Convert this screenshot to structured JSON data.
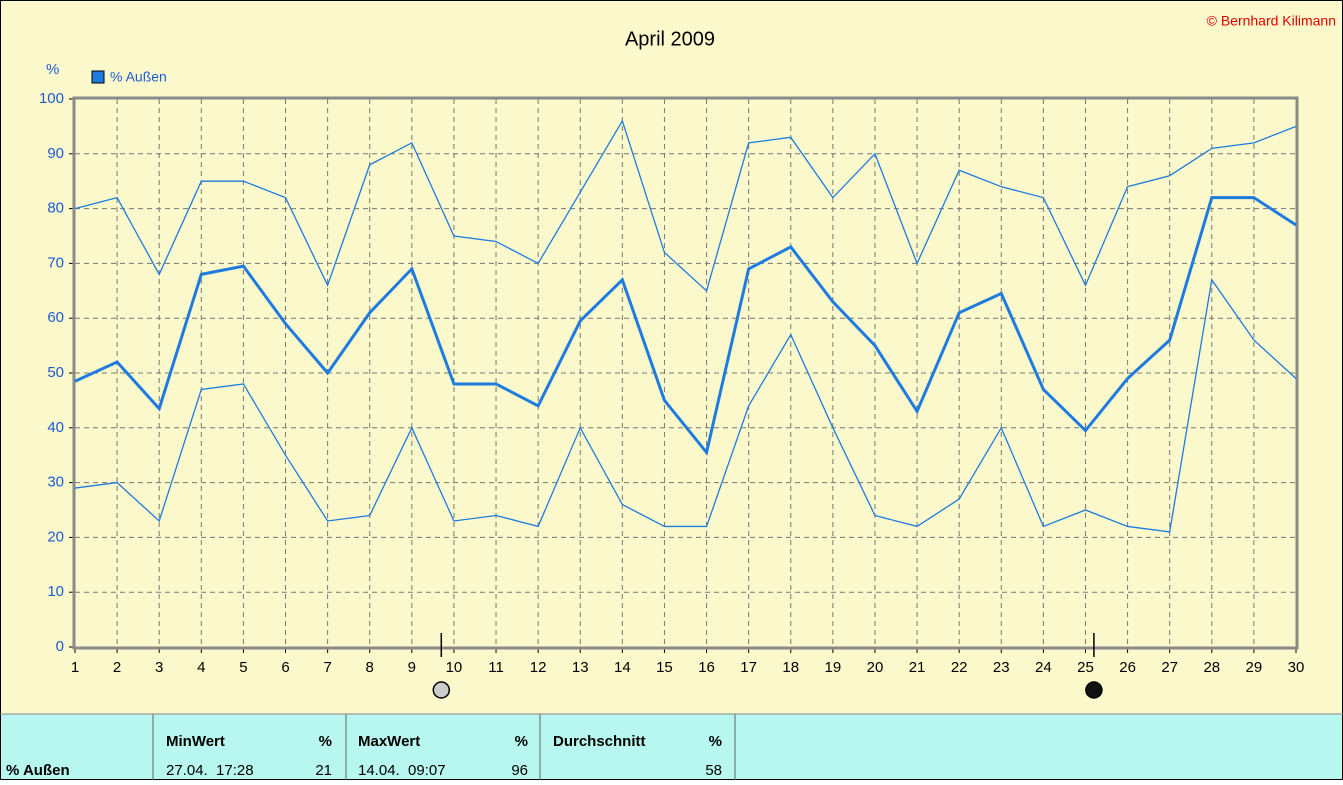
{
  "chart_data": {
    "type": "line",
    "title": "April 2009",
    "copyright": "© Bernhard Kilimann",
    "y_axis_label": "%",
    "x": [
      1,
      2,
      3,
      4,
      5,
      6,
      7,
      8,
      9,
      10,
      11,
      12,
      13,
      14,
      15,
      16,
      17,
      18,
      19,
      20,
      21,
      22,
      23,
      24,
      25,
      26,
      27,
      28,
      29,
      30
    ],
    "series": [
      {
        "name": "% Außen",
        "color": "#1e7be0",
        "values": [
          48.5,
          52,
          43.5,
          68,
          69.5,
          59,
          50,
          61,
          69,
          48,
          48,
          44,
          59.5,
          67,
          45,
          35.5,
          69,
          73,
          63,
          55,
          43,
          61,
          64.5,
          47,
          39.5,
          49,
          56,
          82,
          82,
          77
        ],
        "max_values": [
          80,
          82,
          68,
          85,
          85,
          82,
          66,
          88,
          92,
          75,
          74,
          70,
          83,
          96,
          72,
          65,
          92,
          93,
          82,
          90,
          70,
          87,
          84,
          82,
          66,
          84,
          86,
          91,
          92,
          95
        ],
        "min_values": [
          29,
          30,
          23,
          47,
          48,
          35,
          23,
          24,
          40,
          23,
          24,
          22,
          40,
          26,
          22,
          22,
          44,
          57,
          40,
          24,
          22,
          27,
          40,
          22,
          25,
          22,
          21,
          67,
          56,
          49
        ]
      }
    ],
    "moon_phases": [
      {
        "x": 9.7,
        "phase": "half"
      },
      {
        "x": 25.2,
        "phase": "new"
      }
    ],
    "xlim": [
      1,
      30
    ],
    "xticks": [
      1,
      2,
      3,
      4,
      5,
      6,
      7,
      8,
      9,
      10,
      11,
      12,
      13,
      14,
      15,
      16,
      17,
      18,
      19,
      20,
      21,
      22,
      23,
      24,
      25,
      26,
      27,
      28,
      29,
      30
    ],
    "ylim": [
      0,
      100
    ],
    "yticks": [
      0,
      10,
      20,
      30,
      40,
      50,
      60,
      70,
      80,
      90,
      100
    ],
    "grid": true
  },
  "table": {
    "header": [
      "MinWert",
      "%",
      "MaxWert",
      "%",
      "Durchschnitt",
      "%"
    ],
    "row": [
      "% Außen",
      "27.04.  17:28",
      "21",
      "14.04.  09:07",
      "96",
      "58"
    ]
  }
}
